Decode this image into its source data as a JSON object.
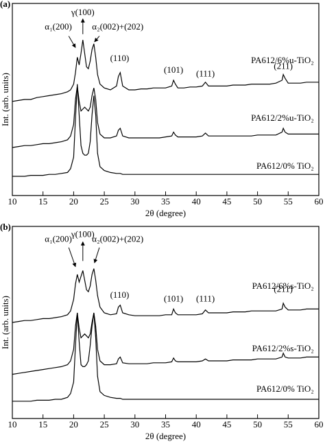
{
  "chart_data": [
    {
      "type": "line",
      "panel_label": "(a)",
      "xlabel": "2θ (degree)",
      "ylabel": "Int. (arb. units)",
      "annotations": [
        "α₁(200)",
        "γ(100)",
        "α₂(002)+(202)",
        "(110)",
        "(101)",
        "(111)",
        "(211)"
      ],
      "xlim": [
        10,
        60
      ],
      "xticks": [
        10,
        15,
        20,
        25,
        30,
        35,
        40,
        45,
        50,
        55,
        60
      ],
      "ylim": [
        0,
        100
      ],
      "x": [
        10,
        11,
        12,
        13,
        14,
        15,
        16,
        17,
        18,
        19,
        19.5,
        20,
        20.3,
        20.6,
        20.9,
        21.2,
        21.5,
        21.8,
        22.1,
        22.4,
        22.7,
        23,
        23.3,
        23.6,
        23.9,
        24.3,
        25,
        26,
        27,
        27.3,
        27.6,
        28,
        29,
        30,
        31,
        32,
        33,
        34,
        35,
        36,
        36.3,
        36.6,
        37,
        38,
        39,
        40,
        41,
        41.5,
        42,
        43,
        44,
        45,
        46,
        47,
        48,
        49,
        50,
        51,
        52,
        53,
        54,
        54.2,
        54.5,
        55,
        56,
        57,
        58,
        59,
        60
      ],
      "series": [
        {
          "name": "PA612/6%u-TiO₂",
          "color": "#000000",
          "values": [
            49,
            49.5,
            50,
            50,
            51,
            51.5,
            52,
            52.5,
            53,
            54,
            55,
            58,
            64,
            72,
            68,
            74,
            81,
            74,
            67,
            66,
            70,
            76,
            79,
            72,
            63,
            58,
            56,
            55,
            57,
            62,
            64,
            57,
            55,
            55,
            55.5,
            55.5,
            56,
            56,
            56,
            57,
            60,
            58,
            56,
            56,
            56.5,
            56.5,
            57,
            59,
            57,
            57,
            57,
            57,
            57.5,
            57.5,
            57.5,
            58,
            58,
            58,
            58,
            58.5,
            60,
            63,
            61,
            58.5,
            58.5,
            58.5,
            59,
            59,
            59
          ]
        },
        {
          "name": "PA612/2%u-TiO₂",
          "color": "#000000",
          "values": [
            25,
            25.5,
            26,
            26,
            26.5,
            27,
            27,
            27.5,
            28,
            29,
            31,
            37,
            50,
            57,
            49,
            44,
            45,
            46,
            45,
            44,
            46,
            52,
            56,
            50,
            38,
            32,
            30,
            30,
            31,
            34,
            35,
            31,
            30,
            30,
            30,
            30,
            30,
            30,
            30.5,
            31,
            33,
            31.5,
            30.5,
            30.5,
            30.5,
            30.5,
            31,
            32.5,
            31,
            31,
            31,
            31,
            31,
            31,
            31,
            31,
            31.5,
            31.5,
            31.5,
            31.5,
            33,
            35,
            33,
            32,
            32,
            32,
            32,
            32,
            32
          ]
        },
        {
          "name": "PA612/0% TiO₂",
          "color": "#000000",
          "values": [
            10,
            10,
            10,
            10.5,
            10.5,
            10.5,
            11,
            11,
            11.5,
            12,
            14,
            20,
            40,
            58,
            42,
            26,
            22,
            21,
            21,
            22,
            28,
            42,
            52,
            42,
            22,
            15,
            13,
            12,
            11.5,
            11.5,
            11.5,
            11,
            11,
            11,
            11,
            11,
            11,
            11,
            11,
            11,
            11,
            11,
            11,
            11,
            11,
            11,
            11,
            11,
            11,
            11,
            11,
            11,
            11,
            11,
            11,
            11,
            11,
            11,
            11,
            11,
            11,
            11,
            11,
            11,
            11,
            11,
            11,
            11,
            11
          ]
        }
      ]
    },
    {
      "type": "line",
      "panel_label": "(b)",
      "xlabel": "2θ (degree)",
      "ylabel": "Int. (arb. units)",
      "annotations": [
        "α₁(200)",
        "γ(100)",
        "α₂(002)+(202)",
        "(110)",
        "(101)",
        "(111)",
        "(211)"
      ],
      "xlim": [
        10,
        60
      ],
      "xticks": [
        10,
        15,
        20,
        25,
        30,
        35,
        40,
        45,
        50,
        55,
        60
      ],
      "ylim": [
        0,
        100
      ],
      "x": [
        10,
        11,
        12,
        13,
        14,
        15,
        16,
        17,
        18,
        19,
        19.5,
        20,
        20.3,
        20.6,
        20.9,
        21.2,
        21.5,
        21.8,
        22.1,
        22.4,
        22.7,
        23,
        23.3,
        23.6,
        23.9,
        24.3,
        25,
        26,
        27,
        27.3,
        27.6,
        28,
        29,
        30,
        31,
        32,
        33,
        34,
        35,
        36,
        36.3,
        36.6,
        37,
        38,
        39,
        40,
        41,
        41.5,
        42,
        43,
        44,
        45,
        46,
        47,
        48,
        49,
        50,
        51,
        52,
        53,
        54,
        54.2,
        54.5,
        55,
        56,
        57,
        58,
        59,
        60
      ],
      "series": [
        {
          "name": "PA612/6%s-TiO₂",
          "color": "#000000",
          "values": [
            50,
            50.5,
            51,
            51,
            51.5,
            52,
            52,
            52.5,
            53,
            54,
            56,
            62,
            70,
            75,
            71,
            74,
            77,
            72,
            67,
            66,
            69,
            75,
            78,
            72,
            64,
            58,
            55,
            54,
            54.5,
            58,
            59,
            55,
            54,
            53.5,
            53.5,
            53.5,
            53.5,
            53.5,
            54,
            54,
            57,
            55,
            54,
            54,
            54,
            54,
            54.5,
            56.5,
            55,
            55,
            55,
            55,
            55.5,
            55.5,
            55.5,
            56,
            56,
            56,
            56,
            56,
            57,
            60,
            58,
            56.5,
            56.5,
            56.5,
            57,
            57,
            57
          ]
        },
        {
          "name": "PA612/2%s-TiO₂",
          "color": "#000000",
          "values": [
            23,
            23.5,
            24,
            24.5,
            25,
            25.5,
            26,
            26.5,
            27,
            28,
            30,
            36,
            48,
            55,
            47,
            42,
            43,
            44,
            43,
            42,
            44,
            50,
            55,
            48,
            36,
            30,
            28,
            28,
            28.5,
            31,
            32,
            29,
            28.5,
            28.5,
            28.5,
            28.5,
            29,
            29,
            29,
            29.5,
            31.5,
            30,
            29.5,
            29.5,
            29.5,
            29.5,
            30,
            31,
            30,
            30,
            30,
            30,
            30.5,
            30.5,
            30.5,
            30.5,
            31,
            31,
            31,
            31,
            32,
            34,
            32,
            31.5,
            31.5,
            31.5,
            32,
            32,
            32
          ]
        },
        {
          "name": "PA612/0% TiO₂",
          "color": "#000000",
          "values": [
            9,
            9,
            9,
            9,
            9.5,
            9.5,
            9.5,
            10,
            10,
            11,
            13,
            19,
            38,
            55,
            40,
            28,
            27,
            27,
            28,
            30,
            38,
            48,
            55,
            42,
            22,
            14,
            12,
            11,
            10.5,
            10.5,
            10.5,
            10,
            10,
            10,
            10,
            10,
            10,
            10,
            10,
            10,
            10,
            10,
            10,
            10,
            10,
            10,
            10,
            10,
            10,
            10,
            10,
            10,
            10,
            10,
            10,
            10,
            10,
            10,
            10,
            10,
            10,
            10,
            10,
            10,
            10,
            10,
            10,
            10,
            10
          ]
        }
      ]
    }
  ]
}
